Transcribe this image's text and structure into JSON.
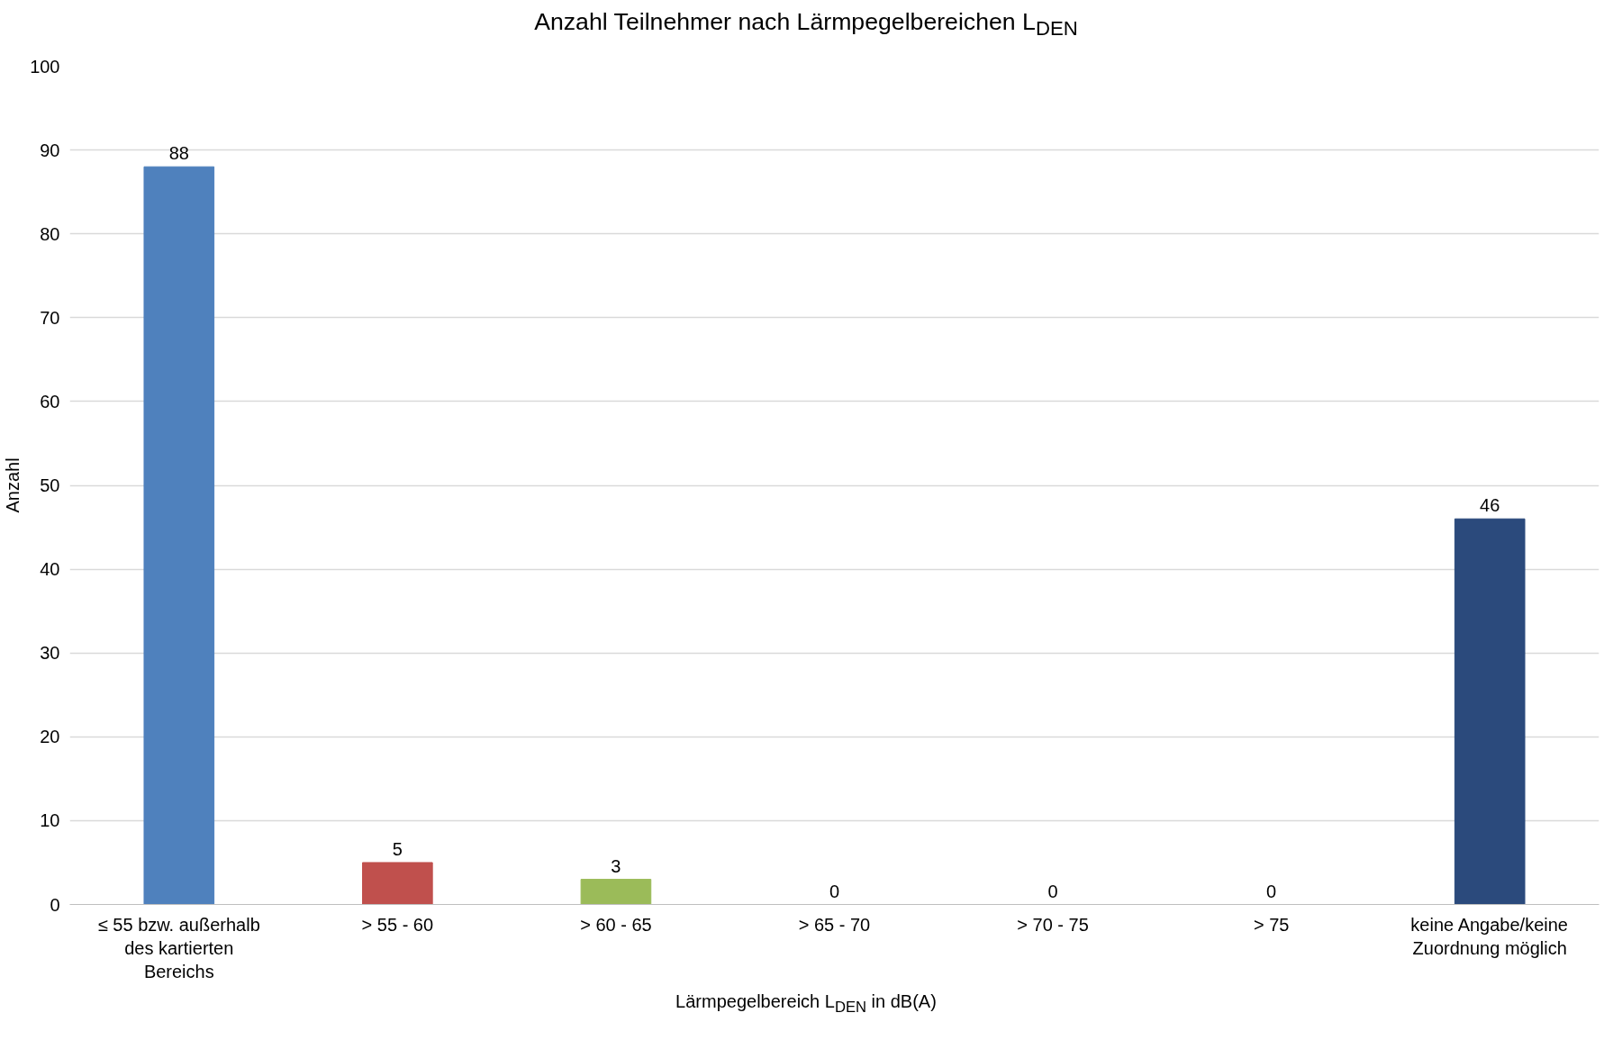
{
  "chart_data": {
    "type": "bar",
    "title": "Anzahl Teilnehmer nach Lärmpegelbereichen L$_{DEN}$",
    "xlabel": "Lärmpegelbereich L$_{DEN}$ in dB(A)",
    "ylabel": "Anzahl",
    "categories": [
      "≤ 55 bzw. außerhalb des kartierten Bereichs",
      "> 55 - 60",
      "> 60 - 65",
      "> 65 - 70",
      "> 70 - 75",
      "> 75",
      "keine Angabe/keine Zuordnung möglich"
    ],
    "values": [
      88,
      5,
      3,
      0,
      0,
      0,
      46
    ],
    "colors": [
      "#4f81bd",
      "#c0504d",
      "#9bbb59",
      "#4f81bd",
      "#4f81bd",
      "#4f81bd",
      "#2b4a7c"
    ],
    "ylim": [
      0,
      100
    ],
    "yticks": [
      0,
      10,
      20,
      30,
      40,
      50,
      60,
      70,
      80,
      90,
      100
    ],
    "grid": "y",
    "data_labels": true
  }
}
